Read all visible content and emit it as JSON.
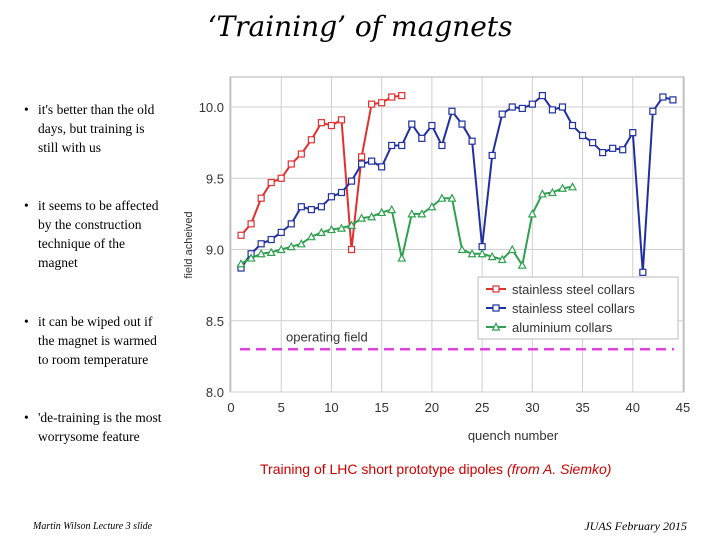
{
  "slide": {
    "title": "‘Training’ of magnets",
    "bullets": [
      "it's better than the old days, but training is still with us",
      "it seems to be affected by the construction technique of the magnet",
      "it can be wiped out if the magnet is warmed to room temperature",
      "'de-training is the most worrysome feature"
    ],
    "caption_main": "Training of LHC short prototype dipoles",
    "caption_credit": "(from A. Siemko)",
    "footer_left": "Martin Wilson Lecture 3 slide",
    "footer_right": "JUAS February 2015"
  },
  "chart_data": {
    "type": "line",
    "title": "",
    "xlabel": "quench number",
    "ylabel": "field acheived",
    "xlim": [
      0,
      45
    ],
    "ylim": [
      8.0,
      10.2
    ],
    "xticks": [
      0,
      5,
      10,
      15,
      20,
      25,
      30,
      35,
      40,
      45
    ],
    "yticks": [
      8.0,
      8.5,
      9.0,
      9.5,
      10.0
    ],
    "ytick_labels": [
      "8.0",
      "8.5",
      "9.0",
      "9.5",
      "10.0"
    ],
    "grid": true,
    "legend_position": "lower-right",
    "annotation": "operating field",
    "operating_field": 8.3,
    "operating_field_color": "#e040e0",
    "series": [
      {
        "name": "stainless steel collars",
        "color": "#e03030",
        "marker": "square",
        "x": [
          1,
          2,
          3,
          4,
          5,
          6,
          7,
          8,
          9,
          10,
          11,
          12,
          13,
          14,
          15,
          16,
          17
        ],
        "y": [
          9.1,
          9.18,
          9.36,
          9.47,
          9.5,
          9.6,
          9.67,
          9.77,
          9.89,
          9.87,
          9.91,
          9.0,
          9.65,
          10.02,
          10.03,
          10.07,
          10.08
        ]
      },
      {
        "name": "stainless steel collars",
        "color": "#2030a0",
        "marker": "square",
        "x": [
          1,
          2,
          3,
          4,
          5,
          6,
          7,
          8,
          9,
          10,
          11,
          12,
          13,
          14,
          15,
          16,
          17,
          18,
          19,
          20,
          21,
          22,
          23,
          24,
          25,
          26,
          27,
          28,
          29,
          30,
          31,
          32,
          33,
          34,
          35,
          36,
          37,
          38,
          39,
          40,
          41,
          42,
          43,
          44
        ],
        "y": [
          8.87,
          8.97,
          9.04,
          9.07,
          9.12,
          9.18,
          9.3,
          9.28,
          9.3,
          9.37,
          9.4,
          9.48,
          9.6,
          9.62,
          9.58,
          9.73,
          9.73,
          9.88,
          9.78,
          9.87,
          9.73,
          9.97,
          9.88,
          9.76,
          9.02,
          9.66,
          9.95,
          10.0,
          9.99,
          10.02,
          10.08,
          9.98,
          10.0,
          9.87,
          9.8,
          9.75,
          9.68,
          9.71,
          9.7,
          9.82,
          8.84,
          9.97,
          10.07,
          10.05
        ]
      },
      {
        "name": "aluminium collars",
        "color": "#30a050",
        "marker": "triangle",
        "x": [
          1,
          2,
          3,
          4,
          5,
          6,
          7,
          8,
          9,
          10,
          11,
          12,
          13,
          14,
          15,
          16,
          17,
          18,
          19,
          20,
          21,
          22,
          23,
          24,
          25,
          26,
          27,
          28,
          29,
          30,
          31,
          32,
          33,
          34
        ],
        "y": [
          8.9,
          8.94,
          8.97,
          8.98,
          9.0,
          9.02,
          9.04,
          9.09,
          9.12,
          9.14,
          9.15,
          9.17,
          9.22,
          9.23,
          9.26,
          9.28,
          8.94,
          9.25,
          9.25,
          9.3,
          9.36,
          9.36,
          9.0,
          8.97,
          8.97,
          8.95,
          8.93,
          9.0,
          8.89,
          9.25,
          9.39,
          9.4,
          9.43,
          9.44
        ]
      }
    ]
  }
}
